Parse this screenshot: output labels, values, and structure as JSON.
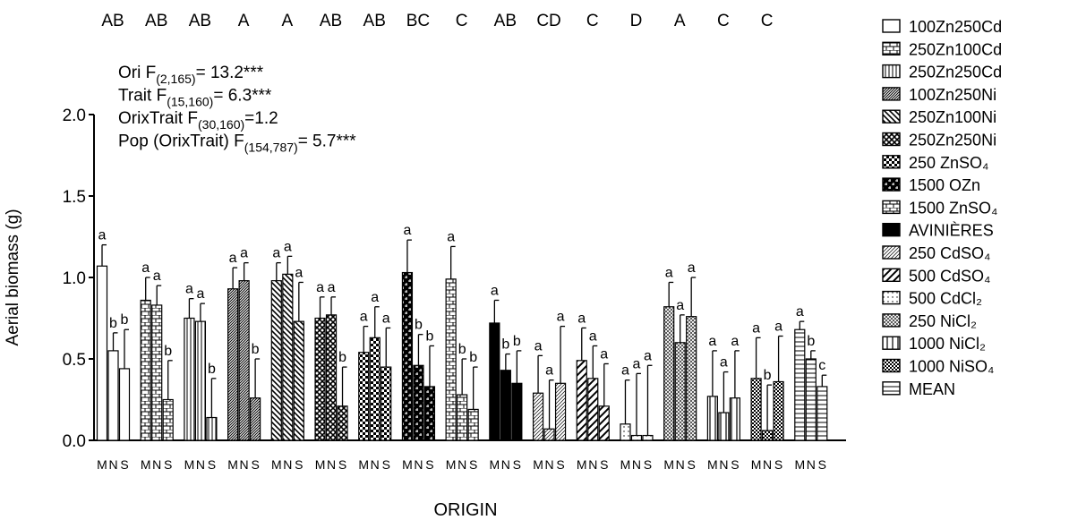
{
  "chart_data": {
    "type": "grouped_bar_error",
    "y_label": "Aerial biomass (g)",
    "x_label": "ORIGIN",
    "ylim": [
      0,
      2
    ],
    "yticks": [
      {
        "value": 0,
        "label": "0.0"
      },
      0.5,
      {
        "value": 1,
        "label": "1.0"
      },
      1.5,
      {
        "value": 2,
        "label": "2.0"
      }
    ],
    "bar_labels": [
      "M",
      "N",
      "S"
    ],
    "annotations": [
      {
        "text": "Ori F",
        "sub": "(2,165)",
        "rest": "= 13.2***"
      },
      {
        "text": "Trait F",
        "sub": "(15,160)",
        "rest": "= 6.3***"
      },
      {
        "text": "OrixTrait F",
        "sub": "(30,160)",
        "rest": "=1.2"
      },
      {
        "text": "Pop (OrixTrait) F",
        "sub": "(154,787)",
        "rest": "= 5.7***"
      }
    ],
    "groups": [
      {
        "name": "100Zn250Cd",
        "pattern": "none",
        "group_letter": "AB",
        "values": [
          1.07,
          0.55,
          0.44
        ],
        "errors": [
          0.13,
          0.11,
          0.24
        ],
        "significance": [
          "a",
          "b",
          "b"
        ]
      },
      {
        "name": "250Zn100Cd",
        "pattern": "bricks",
        "group_letter": "AB",
        "values": [
          0.86,
          0.83,
          0.25
        ],
        "errors": [
          0.14,
          0.12,
          0.24
        ],
        "significance": [
          "a",
          "a",
          "b"
        ]
      },
      {
        "name": "250Zn250Cd",
        "pattern": "vlines",
        "group_letter": "AB",
        "values": [
          0.75,
          0.73,
          0.14
        ],
        "errors": [
          0.12,
          0.11,
          0.24
        ],
        "significance": [
          "a",
          "a",
          "b"
        ]
      },
      {
        "name": "100Zn250Ni",
        "pattern": "diag-dense",
        "group_letter": "A",
        "values": [
          0.93,
          0.98,
          0.26
        ],
        "errors": [
          0.13,
          0.11,
          0.24
        ],
        "significance": [
          "a",
          "a",
          "b"
        ]
      },
      {
        "name": "250Zn100Ni",
        "pattern": "diag",
        "group_letter": "A",
        "values": [
          0.98,
          1.02,
          0.73
        ],
        "errors": [
          0.11,
          0.11,
          0.24
        ],
        "significance": [
          "a",
          "a",
          "a"
        ]
      },
      {
        "name": "250Zn250Ni",
        "pattern": "crosshatch",
        "group_letter": "AB",
        "values": [
          0.75,
          0.77,
          0.21
        ],
        "errors": [
          0.13,
          0.11,
          0.24
        ],
        "significance": [
          "a",
          "a",
          "b"
        ]
      },
      {
        "name": "250 ZnSO₄",
        "pattern": "checker",
        "group_letter": "AB",
        "values": [
          0.54,
          0.63,
          0.45
        ],
        "errors": [
          0.16,
          0.19,
          0.24
        ],
        "significance": [
          "a",
          "a",
          "a"
        ]
      },
      {
        "name": "1500 OZn",
        "pattern": "bricks-dark",
        "group_letter": "BC",
        "values": [
          1.03,
          0.46,
          0.33
        ],
        "errors": [
          0.2,
          0.19,
          0.25
        ],
        "significance": [
          "a",
          "b",
          "b"
        ]
      },
      {
        "name": "1500 ZnSO₄",
        "pattern": "bricks",
        "group_letter": "C",
        "values": [
          0.99,
          0.28,
          0.19
        ],
        "errors": [
          0.2,
          0.22,
          0.26
        ],
        "significance": [
          "a",
          "b",
          "b"
        ]
      },
      {
        "name": "AVINIÈRES",
        "pattern": "solid",
        "group_letter": "AB",
        "values": [
          0.72,
          0.43,
          0.35
        ],
        "errors": [
          0.14,
          0.1,
          0.2
        ],
        "significance": [
          "a",
          "b",
          "b"
        ]
      },
      {
        "name": "250 CdSO₄",
        "pattern": "diag-fine",
        "group_letter": "CD",
        "values": [
          0.29,
          0.07,
          0.35
        ],
        "errors": [
          0.23,
          0.3,
          0.35
        ],
        "significance": [
          "a",
          "a",
          "a"
        ]
      },
      {
        "name": "500 CdSO₄",
        "pattern": "diag-wide",
        "group_letter": "C",
        "values": [
          0.49,
          0.38,
          0.21
        ],
        "errors": [
          0.2,
          0.2,
          0.26
        ],
        "significance": [
          "a",
          "a",
          "a"
        ]
      },
      {
        "name": "500 CdCl₂",
        "pattern": "dots",
        "group_letter": "D",
        "values": [
          0.1,
          0.03,
          0.03
        ],
        "errors": [
          0.27,
          0.38,
          0.43
        ],
        "significance": [
          "a",
          "a",
          "a"
        ]
      },
      {
        "name": "250 NiCl₂",
        "pattern": "diag-cross",
        "group_letter": "A",
        "values": [
          0.82,
          0.6,
          0.76
        ],
        "errors": [
          0.15,
          0.17,
          0.24
        ],
        "significance": [
          "a",
          "a",
          "a"
        ]
      },
      {
        "name": "1000 NiCl₂",
        "pattern": "vlines-wide",
        "group_letter": "C",
        "values": [
          0.27,
          0.17,
          0.26
        ],
        "errors": [
          0.28,
          0.25,
          0.29
        ],
        "significance": [
          "a",
          "a",
          "a"
        ]
      },
      {
        "name": "1000 NiSO₄",
        "pattern": "checker-fine",
        "group_letter": "C",
        "values": [
          0.38,
          0.06,
          0.36
        ],
        "errors": [
          0.25,
          0.28,
          0.28
        ],
        "significance": [
          "a",
          "b",
          "a"
        ]
      },
      {
        "name": "MEAN",
        "pattern": "hlines",
        "group_letter": null,
        "values": [
          0.68,
          0.5,
          0.33
        ],
        "errors": [
          0.05,
          0.05,
          0.07
        ],
        "significance": [
          "a",
          "b",
          "c"
        ]
      }
    ]
  }
}
